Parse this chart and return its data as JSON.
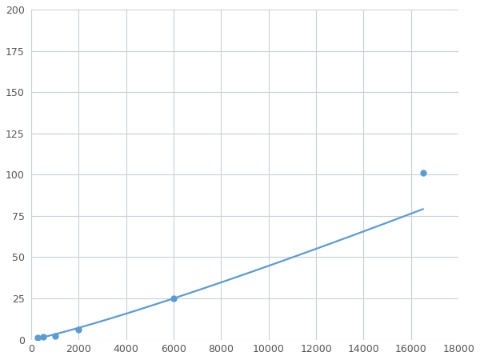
{
  "x": [
    250,
    500,
    1000,
    2000,
    6000,
    16500
  ],
  "y": [
    1,
    1.5,
    2,
    6,
    25,
    101
  ],
  "line_color": "#5b9bd5",
  "marker_color": "#5b9bd5",
  "marker_size": 5,
  "line_width": 1.6,
  "xlim": [
    0,
    18000
  ],
  "ylim": [
    0,
    200
  ],
  "xticks": [
    0,
    2000,
    4000,
    6000,
    8000,
    10000,
    12000,
    14000,
    16000,
    18000
  ],
  "yticks": [
    0,
    25,
    50,
    75,
    100,
    125,
    150,
    175,
    200
  ],
  "grid_color": "#c8d0dc",
  "background_color": "#ffffff",
  "fig_background": "#ffffff",
  "tick_color": "#555555",
  "tick_fontsize": 9
}
